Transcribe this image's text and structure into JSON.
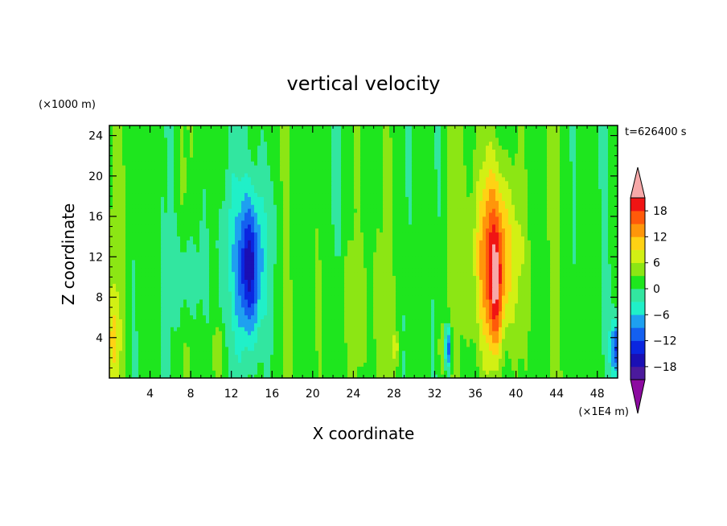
{
  "chart_data": {
    "type": "heatmap",
    "title": "vertical velocity",
    "xlabel": "X coordinate",
    "ylabel": "Z coordinate",
    "x_unit": "(×1E4 m)",
    "y_unit": "(×1000 m)",
    "time_label": "t=626400 s",
    "xlim": [
      0,
      50
    ],
    "ylim": [
      0,
      25
    ],
    "x_ticks": [
      4,
      8,
      12,
      16,
      20,
      24,
      28,
      32,
      36,
      40,
      44,
      48
    ],
    "x_tick_labels": [
      "4",
      "8",
      "12",
      "16",
      "20",
      "24",
      "28",
      "32",
      "36",
      "40",
      "44",
      "48"
    ],
    "y_ticks": [
      4,
      8,
      12,
      16,
      20,
      24
    ],
    "y_tick_labels": [
      "4",
      "8",
      "12",
      "16",
      "20",
      "24"
    ],
    "colorbar": {
      "levels": [
        -21,
        -18,
        -15,
        -12,
        -9,
        -6,
        -3,
        0,
        3,
        6,
        9,
        12,
        15,
        18,
        21
      ],
      "tick_values": [
        -18,
        -12,
        -6,
        0,
        6,
        12,
        18
      ],
      "tick_labels": [
        "−18",
        "−12",
        "−6",
        "0",
        "6",
        "12",
        "18"
      ],
      "under_color": "#8c0aa0",
      "over_color": "#f7a8a8",
      "colors": [
        "#4b1a9c",
        "#1a0fb4",
        "#0a26e0",
        "#1460f0",
        "#1ea0f0",
        "#20f0c8",
        "#32e6a0",
        "#1ee61e",
        "#8ce614",
        "#d2f014",
        "#ffd214",
        "#ff960a",
        "#ff5a0a",
        "#f01414"
      ]
    },
    "features": [
      {
        "name": "downdraft",
        "x_center": 13.8,
        "z_range": [
          1,
          21
        ],
        "min_value": -18
      },
      {
        "name": "updraft",
        "x_center": 38.0,
        "z_range": [
          0.5,
          23
        ],
        "max_value": 21
      },
      {
        "name": "weak downdraft",
        "x_center": 33.3,
        "z_range": [
          0.5,
          5
        ],
        "min_value": -12
      },
      {
        "name": "weak downdraft",
        "x_center": 50.0,
        "z_range": [
          0.5,
          6
        ],
        "min_value": -12
      }
    ]
  }
}
